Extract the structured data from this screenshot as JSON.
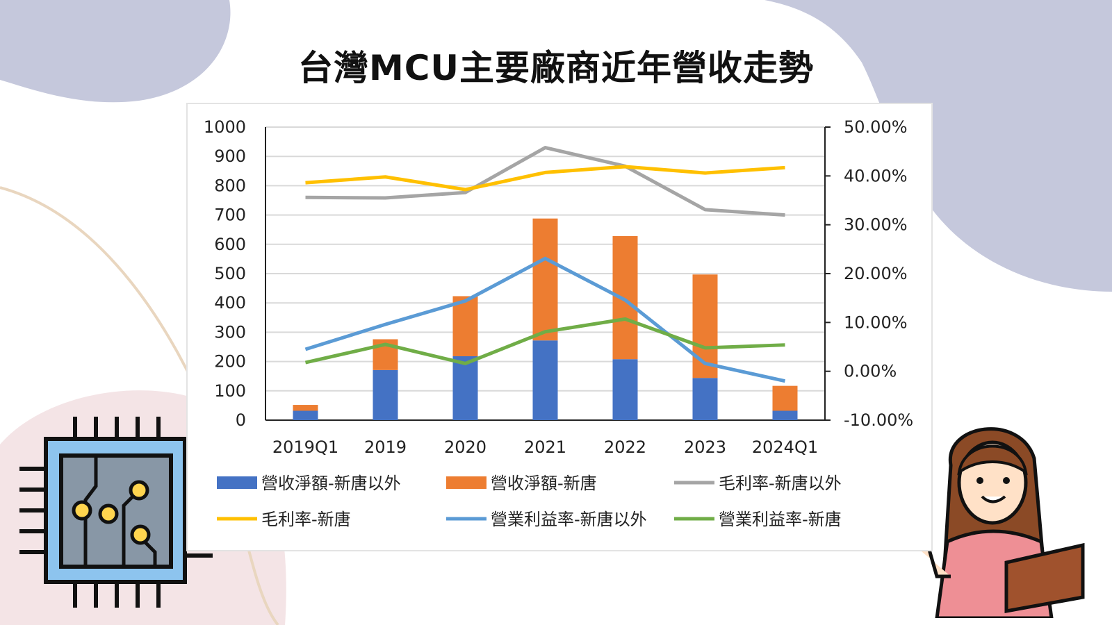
{
  "title": "台灣MCU主要廠商近年營收走勢",
  "chart_data": {
    "type": "bar+line",
    "title": "",
    "categories": [
      "2019Q1",
      "2019",
      "2020",
      "2021",
      "2022",
      "2023",
      "2024Q1"
    ],
    "y_left": {
      "range": [
        0,
        1000
      ],
      "ticks": [
        "0",
        "100",
        "200",
        "300",
        "400",
        "500",
        "600",
        "700",
        "800",
        "900",
        "1000"
      ]
    },
    "y_right": {
      "range": [
        -10,
        50
      ],
      "ticks": [
        "-10.00%",
        "0.00%",
        "10.00%",
        "20.00%",
        "30.00%",
        "40.00%",
        "50.00%"
      ]
    },
    "grid": true,
    "legend_position": "bottom",
    "bar_series": [
      {
        "name": "營收淨額-新唐以外",
        "color": "#4472c4",
        "stacked": true,
        "values": [
          32,
          171,
          218,
          272,
          208,
          144,
          32
        ]
      },
      {
        "name": "營收淨額-新唐",
        "color": "#ed7d31",
        "stacked": true,
        "values": [
          20,
          105,
          205,
          416,
          420,
          353,
          85
        ]
      }
    ],
    "line_series": [
      {
        "name": "毛利率-新唐以外",
        "color": "#a5a5a5",
        "axis": "right",
        "values": [
          35.6,
          35.5,
          36.6,
          45.8,
          42.0,
          33.1,
          32.0
        ]
      },
      {
        "name": "毛利率-新唐",
        "color": "#ffc000",
        "axis": "right",
        "values": [
          38.6,
          39.8,
          37.2,
          40.7,
          41.9,
          40.6,
          41.7
        ]
      },
      {
        "name": "營業利益率-新唐以外",
        "color": "#5b9bd5",
        "axis": "right",
        "values": [
          4.5,
          9.6,
          14.4,
          23.1,
          14.6,
          1.6,
          -2.0
        ]
      },
      {
        "name": "營業利益率-新唐",
        "color": "#70ad47",
        "axis": "right",
        "values": [
          1.8,
          5.5,
          1.6,
          8.1,
          10.7,
          4.8,
          5.4
        ]
      }
    ]
  }
}
